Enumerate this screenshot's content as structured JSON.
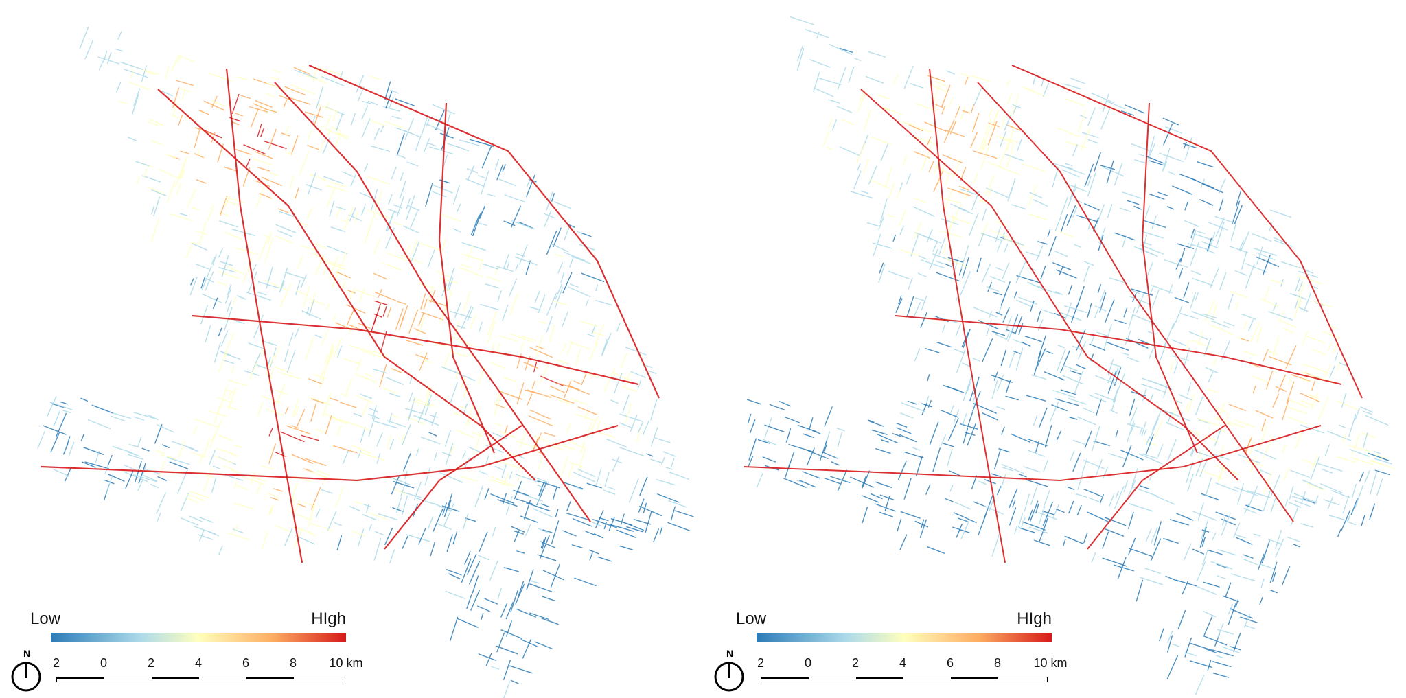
{
  "panels": [
    {
      "id": "left",
      "legend": {
        "low": "Low",
        "high": "HIgh"
      },
      "scale": {
        "ticks": [
          "2",
          "0",
          "2",
          "4",
          "6",
          "8",
          "10 km"
        ]
      },
      "north": "N"
    },
    {
      "id": "right",
      "legend": {
        "low": "Low",
        "high": "HIgh"
      },
      "scale": {
        "ticks": [
          "2",
          "0",
          "2",
          "4",
          "6",
          "8",
          "10 km"
        ]
      },
      "north": "N"
    }
  ],
  "colors": {
    "low": "#2c7bb6",
    "mid_low": "#abd9e9",
    "mid": "#ffffbf",
    "mid_high": "#fdae61",
    "high": "#d7191c"
  }
}
